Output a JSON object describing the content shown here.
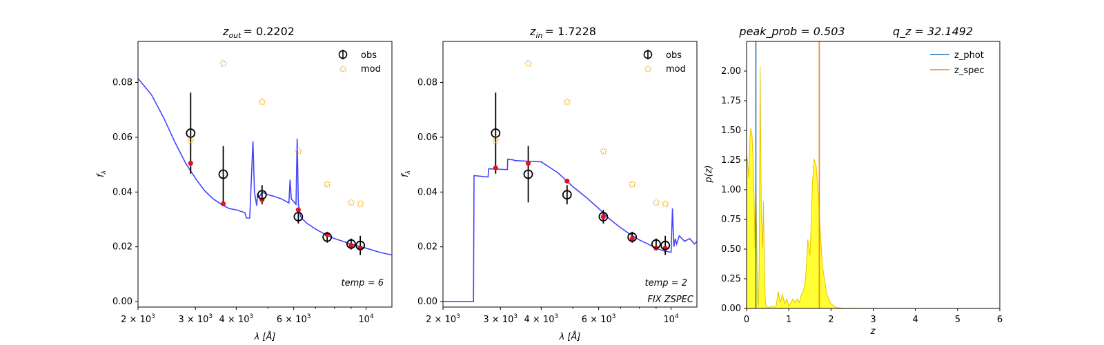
{
  "chart_data": [
    {
      "type": "scatter",
      "title_main": "z",
      "title_sub": "out",
      "title_value": "= 0.2202",
      "xlabel": "λ [Å]",
      "ylabel": "f",
      "ylabel_sub": "λ",
      "x_scale": "log",
      "xlim": [
        2000,
        12000
      ],
      "ylim": [
        -0.002,
        0.095
      ],
      "yticks": [
        "0.00",
        "0.02",
        "0.04",
        "0.06",
        "0.08"
      ],
      "ytick_values": [
        0,
        0.02,
        0.04,
        0.06,
        0.08
      ],
      "xticks": [
        {
          "v": 2000,
          "m": "2 × 10",
          "e": "3"
        },
        {
          "v": 3000,
          "m": "3 × 10",
          "e": "3"
        },
        {
          "v": 4000,
          "m": "4 × 10",
          "e": "3"
        },
        {
          "v": 6000,
          "m": "6 × 10",
          "e": "3"
        },
        {
          "v": 10000,
          "m": "10",
          "e": "4"
        }
      ],
      "legend": [
        "obs",
        "mod"
      ],
      "annotation": [
        "temp = 6"
      ],
      "obs": {
        "x": [
          2900,
          3650,
          4800,
          6200,
          7600,
          9000,
          9600
        ],
        "y": [
          0.0615,
          0.0465,
          0.039,
          0.031,
          0.0235,
          0.021,
          0.0205
        ],
        "err": [
          0.0148,
          0.0103,
          0.0035,
          0.0025,
          0.002,
          0.002,
          0.0035
        ]
      },
      "mod": {
        "x": [
          2900,
          3650,
          4800,
          6200,
          7600,
          9000,
          9600
        ],
        "y": [
          0.0588,
          0.087,
          0.073,
          0.055,
          0.0428,
          0.0362,
          0.0357
        ]
      },
      "points": {
        "x": [
          2900,
          3650,
          4800,
          6200,
          7600,
          9000,
          9600
        ],
        "y": [
          0.0505,
          0.0357,
          0.0372,
          0.0335,
          0.0245,
          0.0205,
          0.0195
        ]
      },
      "template": {
        "x": [
          2000,
          2200,
          2400,
          2600,
          2800,
          3000,
          3200,
          3400,
          3600,
          3800,
          4000,
          4250,
          4300,
          4400,
          4500,
          4550,
          4620,
          4650,
          4700,
          4800,
          5000,
          5200,
          5500,
          5800,
          5850,
          5900,
          6000,
          6100,
          6150,
          6200,
          6250,
          6300,
          6400,
          6600,
          7000,
          7500,
          8000,
          9000,
          10000,
          11000,
          12000
        ],
        "y": [
          0.0815,
          0.0755,
          0.067,
          0.058,
          0.0505,
          0.045,
          0.0405,
          0.0375,
          0.0355,
          0.034,
          0.0335,
          0.0325,
          0.0305,
          0.0305,
          0.0585,
          0.04,
          0.035,
          0.0395,
          0.038,
          0.04,
          0.039,
          0.0385,
          0.0375,
          0.036,
          0.0445,
          0.0375,
          0.0365,
          0.0355,
          0.0595,
          0.0355,
          0.0335,
          0.031,
          0.03,
          0.0285,
          0.0265,
          0.0245,
          0.023,
          0.021,
          0.0195,
          0.018,
          0.017
        ]
      }
    },
    {
      "type": "scatter",
      "title_main": "z",
      "title_sub": "in",
      "title_value": "= 1.7228",
      "xlabel": "λ [Å]",
      "ylabel": "f",
      "ylabel_sub": "λ",
      "x_scale": "log",
      "xlim": [
        2000,
        12000
      ],
      "ylim": [
        -0.002,
        0.095
      ],
      "yticks": [
        "0.00",
        "0.02",
        "0.04",
        "0.06",
        "0.08"
      ],
      "ytick_values": [
        0,
        0.02,
        0.04,
        0.06,
        0.08
      ],
      "xticks": [
        {
          "v": 2000,
          "m": "2 × 10",
          "e": "3"
        },
        {
          "v": 3000,
          "m": "3 × 10",
          "e": "3"
        },
        {
          "v": 4000,
          "m": "4 × 10",
          "e": "3"
        },
        {
          "v": 6000,
          "m": "6 × 10",
          "e": "3"
        },
        {
          "v": 10000,
          "m": "10",
          "e": "4"
        }
      ],
      "legend": [
        "obs",
        "mod"
      ],
      "annotation": [
        "temp = 2",
        "FIX ZSPEC"
      ],
      "obs": {
        "x": [
          2900,
          3650,
          4800,
          6200,
          7600,
          9000,
          9600
        ],
        "y": [
          0.0615,
          0.0465,
          0.039,
          0.031,
          0.0235,
          0.021,
          0.0205
        ],
        "err": [
          0.0148,
          0.0103,
          0.0035,
          0.0025,
          0.002,
          0.002,
          0.0035
        ]
      },
      "mod": {
        "x": [
          2900,
          3650,
          4800,
          6200,
          7600,
          9000,
          9600
        ],
        "y": [
          0.0588,
          0.087,
          0.073,
          0.055,
          0.0428,
          0.0362,
          0.0357
        ]
      },
      "points": {
        "x": [
          2900,
          3650,
          4800,
          6200,
          7600,
          9000,
          9600
        ],
        "y": [
          0.0488,
          0.0505,
          0.044,
          0.031,
          0.023,
          0.0195,
          0.0195
        ]
      },
      "template": {
        "x": [
          2000,
          2480,
          2490,
          2750,
          2760,
          3150,
          3160,
          3300,
          3310,
          4000,
          4500,
          5000,
          5500,
          6000,
          6500,
          7000,
          7500,
          8000,
          8500,
          9000,
          9500,
          10000,
          10100,
          10200,
          10300,
          10400,
          10600,
          11000,
          11400,
          11800,
          12000
        ],
        "y": [
          0,
          0,
          0.046,
          0.0455,
          0.0485,
          0.0482,
          0.052,
          0.0517,
          0.0515,
          0.051,
          0.047,
          0.042,
          0.038,
          0.034,
          0.03,
          0.027,
          0.0245,
          0.0225,
          0.021,
          0.0195,
          0.0185,
          0.018,
          0.034,
          0.02,
          0.023,
          0.021,
          0.024,
          0.022,
          0.023,
          0.021,
          0.022
        ]
      }
    },
    {
      "type": "area",
      "title_left": "peak_prob = 0.503",
      "title_right": "q_z = 32.1492",
      "xlabel": "z",
      "ylabel": "p(z)",
      "xlim": [
        0,
        6
      ],
      "ylim": [
        0,
        2.25
      ],
      "xticks": [
        "0",
        "1",
        "2",
        "3",
        "4",
        "5",
        "6"
      ],
      "xtick_values": [
        0,
        1,
        2,
        3,
        4,
        5,
        6
      ],
      "yticks": [
        "0.00",
        "0.25",
        "0.50",
        "0.75",
        "1.00",
        "1.25",
        "1.50",
        "1.75",
        "2.00"
      ],
      "ytick_values": [
        0,
        0.25,
        0.5,
        0.75,
        1,
        1.25,
        1.5,
        1.75,
        2.0
      ],
      "legend": [
        "z_phot",
        "z_spec"
      ],
      "z_phot": 0.2202,
      "z_spec": 1.7228,
      "pz": {
        "z": [
          0,
          0.02,
          0.05,
          0.08,
          0.1,
          0.13,
          0.16,
          0.18,
          0.2,
          0.22,
          0.24,
          0.26,
          0.28,
          0.3,
          0.32,
          0.35,
          0.38,
          0.4,
          0.42,
          0.44,
          0.46,
          0.48,
          0.5,
          0.52,
          0.55,
          0.6,
          0.65,
          0.7,
          0.75,
          0.8,
          0.85,
          0.9,
          0.95,
          1.0,
          1.05,
          1.1,
          1.15,
          1.2,
          1.25,
          1.3,
          1.35,
          1.4,
          1.45,
          1.5,
          1.53,
          1.56,
          1.6,
          1.65,
          1.7,
          1.75,
          1.8,
          1.9,
          2.0,
          2.1,
          2.2,
          2.3,
          2.5,
          3.0,
          4.0,
          5.0
        ],
        "p": [
          1.3,
          1.25,
          1.1,
          1.45,
          1.52,
          1.45,
          1.2,
          0.9,
          0.5,
          1.1,
          0.6,
          0.1,
          0.02,
          0.35,
          2.04,
          0.8,
          0.5,
          0.9,
          0.4,
          0.1,
          0.02,
          0.01,
          0.01,
          0.01,
          0.01,
          0.02,
          0.01,
          0.02,
          0.14,
          0.05,
          0.12,
          0.04,
          0.08,
          0.02,
          0.05,
          0.08,
          0.05,
          0.08,
          0.05,
          0.12,
          0.15,
          0.25,
          0.58,
          0.45,
          0.7,
          1.05,
          1.26,
          1.2,
          0.95,
          0.62,
          0.35,
          0.12,
          0.04,
          0.01,
          0.005,
          0.002,
          0.001,
          0.0005,
          0.0002,
          0.0001
        ]
      }
    }
  ],
  "colors": {
    "template": "#3a3aff",
    "model_point": "#e0141e",
    "mod_star": "#f2a81d",
    "obs": "#000000",
    "z_phot": "#1f77b4",
    "z_spec": "#ff7f0e",
    "pz_fill": "#ffff33",
    "pz_line": "#e8c100"
  }
}
